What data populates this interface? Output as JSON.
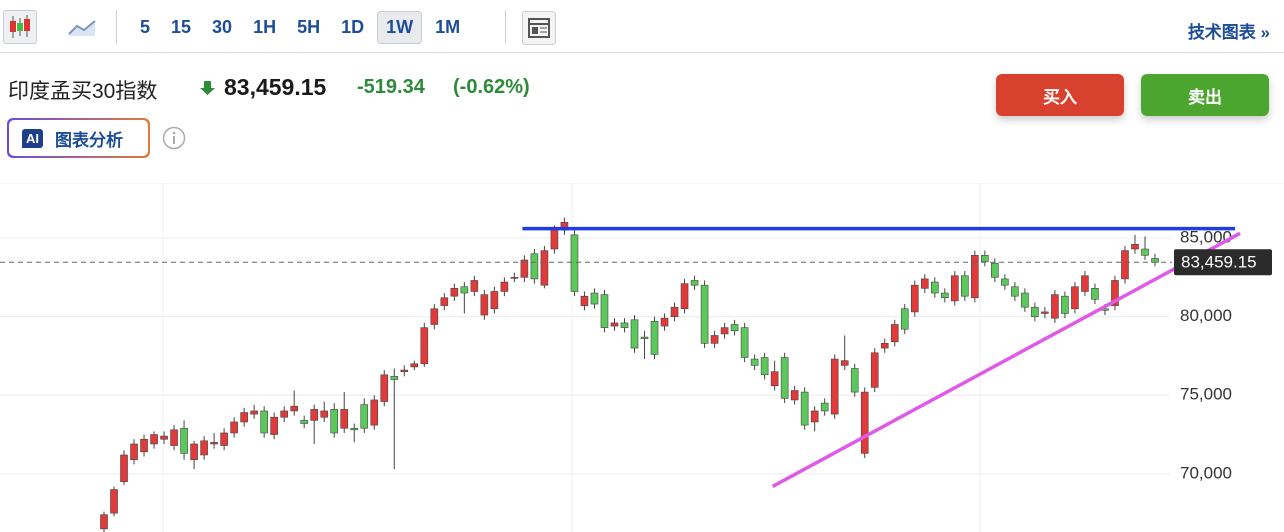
{
  "toolbar": {
    "intervals": [
      "5",
      "15",
      "30",
      "1H",
      "5H",
      "1D",
      "1W",
      "1M"
    ],
    "active": "1W",
    "link": "技术图表 »"
  },
  "quote": {
    "name": "印度孟买30指数",
    "price": "83,459.15",
    "change": "-519.34",
    "change_pct": "(-0.62%)"
  },
  "buttons": {
    "buy": "买入",
    "sell": "卖出"
  },
  "ai": {
    "badge": "AI",
    "label": "图表分析"
  },
  "chart_data": {
    "type": "candlestick",
    "up_color": "#e03a3a",
    "down_color": "#5cc85c",
    "grid": true,
    "ylim": [
      66300,
      88500
    ],
    "yticks": [
      {
        "value": 70000,
        "label": "70,000"
      },
      {
        "value": 75000,
        "label": "75,000"
      },
      {
        "value": 80000,
        "label": "80,000"
      },
      {
        "value": 85000,
        "label": "85,000"
      }
    ],
    "last_price": {
      "value": 83459.15,
      "label": "83,459.15"
    },
    "open": [
      66500,
      67500,
      69500,
      70900,
      71400,
      71900,
      72200,
      71800,
      72900,
      70900,
      71200,
      71900,
      71800,
      72600,
      73300,
      73800,
      74000,
      72500,
      73600,
      74000,
      73400,
      73400,
      73600,
      74100,
      72900,
      72900,
      74400,
      73100,
      74600,
      76200,
      76500,
      76800,
      77000,
      79500,
      80700,
      81300,
      81900,
      81600,
      80100,
      80500,
      81600,
      82500,
      82500,
      84000,
      82000,
      84300,
      85500,
      85200,
      80700,
      81500,
      81400,
      79400,
      79600,
      79800,
      78700,
      79700,
      79400,
      80000,
      80500,
      82300,
      82000,
      78300,
      78900,
      79500,
      79300,
      77300,
      77400,
      75600,
      77400,
      74700,
      75200,
      73300,
      74500,
      73800,
      76900,
      76700,
      71300,
      75500,
      78000,
      78400,
      80500,
      80300,
      81800,
      82200,
      81500,
      81000,
      82600,
      81200,
      83900,
      83400,
      82400,
      81900,
      81500,
      80600,
      80200,
      79900,
      81300,
      80500,
      81600,
      81800,
      80500,
      80700,
      82400,
      84300,
      84300,
      83700
    ],
    "high": [
      67600,
      69200,
      71500,
      72200,
      72500,
      72700,
      72700,
      73100,
      73400,
      72100,
      72400,
      72600,
      72900,
      73600,
      74200,
      74400,
      74300,
      73900,
      74300,
      75300,
      73700,
      74400,
      74600,
      74500,
      75200,
      73200,
      74800,
      75000,
      76600,
      76700,
      76900,
      77200,
      79600,
      80800,
      81500,
      82100,
      82200,
      82600,
      81700,
      81900,
      82500,
      82800,
      83900,
      84300,
      84500,
      85800,
      86300,
      85500,
      81600,
      81800,
      81700,
      79900,
      79900,
      80100,
      79100,
      80000,
      80200,
      80900,
      82400,
      82600,
      82300,
      79100,
      79600,
      79800,
      79600,
      77600,
      77700,
      77200,
      77700,
      75600,
      75500,
      74300,
      74800,
      77600,
      78800,
      77000,
      75500,
      78000,
      78600,
      79800,
      80800,
      82300,
      82700,
      82500,
      81800,
      82900,
      82900,
      84200,
      84200,
      83700,
      82700,
      82200,
      81800,
      80900,
      80600,
      81700,
      81600,
      82200,
      82900,
      82100,
      80800,
      82600,
      84500,
      85200,
      85100,
      84000
    ],
    "low": [
      66300,
      67300,
      69300,
      70600,
      71100,
      71600,
      71900,
      71500,
      70900,
      70300,
      70900,
      71600,
      71500,
      72300,
      73000,
      73500,
      72300,
      72200,
      73300,
      73700,
      72900,
      71900,
      73300,
      72300,
      72600,
      72000,
      72600,
      72800,
      74300,
      70300,
      76200,
      76600,
      76800,
      79200,
      80400,
      81000,
      80200,
      81300,
      79800,
      80200,
      81300,
      82200,
      82200,
      82100,
      81800,
      84000,
      85200,
      81300,
      80400,
      80500,
      79000,
      79100,
      79000,
      77700,
      77300,
      77300,
      79100,
      79700,
      80200,
      81700,
      78000,
      78000,
      78600,
      78800,
      77100,
      76600,
      76000,
      75300,
      74500,
      74400,
      72800,
      72700,
      73700,
      73500,
      76600,
      74900,
      71000,
      75200,
      77700,
      78100,
      78900,
      80000,
      81500,
      81200,
      80900,
      80700,
      81000,
      80900,
      83200,
      82200,
      81700,
      81000,
      80300,
      79700,
      79900,
      79600,
      79900,
      80200,
      81300,
      80800,
      80100,
      80400,
      82100,
      84000,
      83600,
      83200
    ],
    "close": [
      67400,
      69000,
      71200,
      71900,
      72200,
      72500,
      72400,
      72800,
      71300,
      71900,
      72100,
      72000,
      72600,
      73300,
      73900,
      74000,
      72600,
      73600,
      74000,
      74300,
      73200,
      74100,
      74000,
      72600,
      74100,
      72800,
      72900,
      74700,
      76300,
      76000,
      76600,
      77000,
      79300,
      80500,
      81200,
      81800,
      81500,
      82300,
      81400,
      81600,
      82200,
      82500,
      83600,
      82400,
      84200,
      85500,
      86000,
      81600,
      81300,
      80800,
      79300,
      79600,
      79300,
      78000,
      78600,
      77600,
      79900,
      80600,
      82100,
      82000,
      78300,
      78800,
      79300,
      79100,
      77400,
      76900,
      76300,
      76500,
      74800,
      75300,
      73100,
      74000,
      74000,
      77300,
      77200,
      75200,
      75200,
      77700,
      78300,
      79500,
      79200,
      82000,
      82400,
      81500,
      81200,
      82600,
      81300,
      83900,
      83500,
      82500,
      82000,
      81300,
      80600,
      80000,
      80300,
      81400,
      80200,
      81900,
      82600,
      81100,
      80400,
      82300,
      84200,
      84600,
      83900,
      83459.15
    ],
    "trendlines": [
      {
        "color": "#1f3de0",
        "x": [
          41.8,
          113
        ],
        "y": [
          85600,
          85600
        ]
      },
      {
        "color": "#e05ae8",
        "x": [
          66.8,
          113.5
        ],
        "y": [
          69200,
          85300
        ]
      }
    ]
  }
}
